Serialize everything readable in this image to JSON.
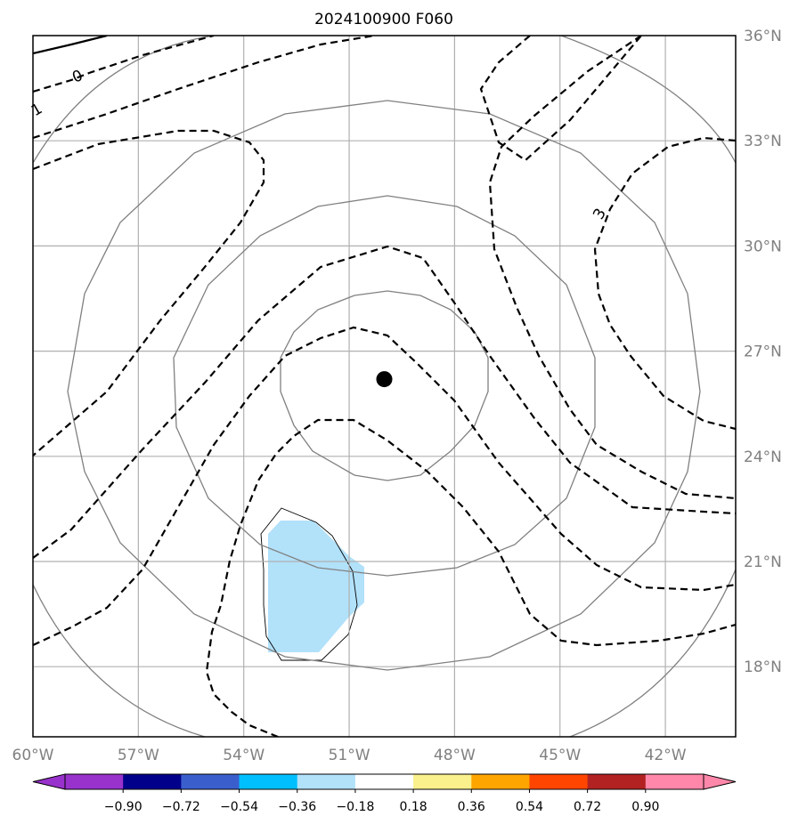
{
  "title": "2024100900 F060",
  "map": {
    "lon_range": [
      -60,
      -40
    ],
    "lat_range": [
      16,
      36
    ],
    "lon_ticks": [
      {
        "value": -60,
        "label": "60°W"
      },
      {
        "value": -57,
        "label": "57°W"
      },
      {
        "value": -54,
        "label": "54°W"
      },
      {
        "value": -51,
        "label": "51°W"
      },
      {
        "value": -48,
        "label": "48°W"
      },
      {
        "value": -45,
        "label": "45°W"
      },
      {
        "value": -42,
        "label": "42°W"
      }
    ],
    "lat_ticks": [
      {
        "value": 36,
        "label": "36°N"
      },
      {
        "value": 33,
        "label": "33°N"
      },
      {
        "value": 30,
        "label": "30°N"
      },
      {
        "value": 27,
        "label": "27°N"
      },
      {
        "value": 24,
        "label": "24°N"
      },
      {
        "value": 21,
        "label": "21°N"
      },
      {
        "value": 18,
        "label": "18°N"
      }
    ],
    "grid": true,
    "storm_center": {
      "lon": -50.0,
      "lat": 26.2
    },
    "range_rings_count": 4,
    "contour_labels": [
      {
        "text": "0"
      },
      {
        "text": "1"
      },
      {
        "text": "3"
      }
    ]
  },
  "colorbar": {
    "extend": "both",
    "tick_labels": [
      "−0.90",
      "−0.72",
      "−0.54",
      "−0.36",
      "−0.18",
      "0.18",
      "0.36",
      "0.54",
      "0.72",
      "0.90"
    ],
    "colors": [
      "#9932CC",
      "#00008B",
      "#3A5FCD",
      "#00BFFF",
      "#B2E1FA",
      "#FFFFFF",
      "#FAF08C",
      "#FFA500",
      "#FF4500",
      "#B22222",
      "#FF88AA"
    ],
    "under_color": "#9932CC",
    "over_color": "#FF88AA"
  },
  "colors": {
    "grid": "#b0b0b0",
    "rings": "#808080",
    "contour": "#000000",
    "shaded_region": "#B2E1FA"
  }
}
